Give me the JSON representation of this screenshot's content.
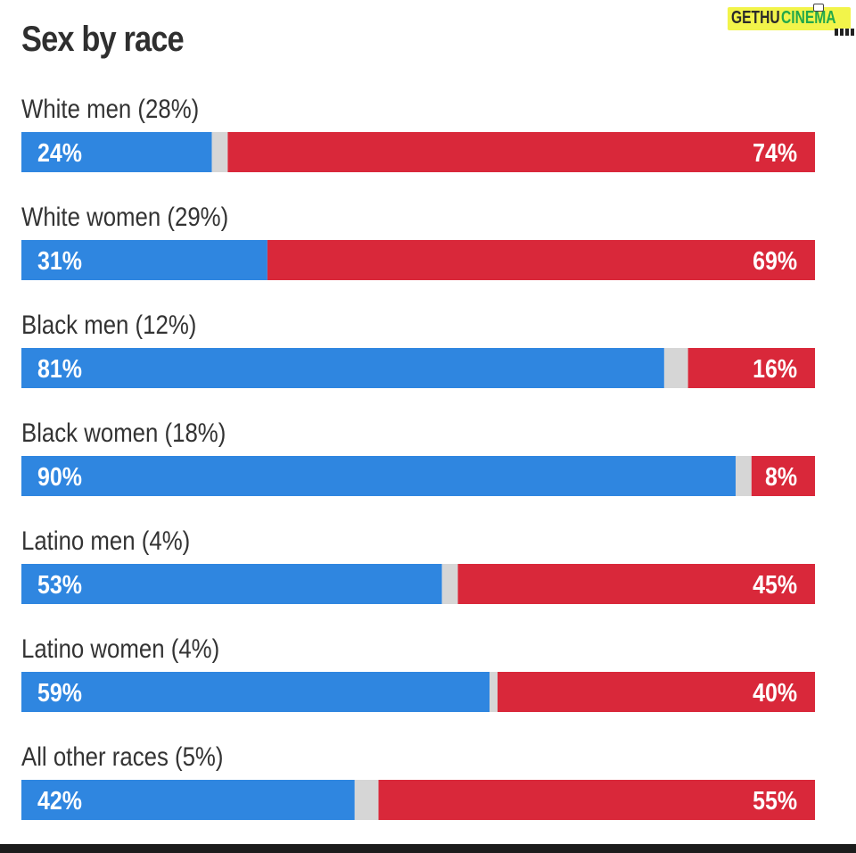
{
  "logo": {
    "part1": "GETHU",
    "part2": "CINEMA"
  },
  "chart_data": {
    "type": "bar",
    "orientation": "horizontal-stacked-100",
    "title": "Sex by race",
    "colors": {
      "left": "#2f86e0",
      "middle": "#d6d6d6",
      "right": "#d9283a"
    },
    "categories": [
      "White men (28%)",
      "White women (29%)",
      "Black men (12%)",
      "Black women (18%)",
      "Latino men (4%)",
      "Latino women (4%)",
      "All other races (5%)"
    ],
    "series": [
      {
        "values": [
          24,
          31,
          81,
          90,
          53,
          59,
          42
        ],
        "labels": [
          "24%",
          "31%",
          "81%",
          "90%",
          "53%",
          "59%",
          "42%"
        ]
      },
      {
        "values": [
          74,
          69,
          16,
          8,
          45,
          40,
          55
        ],
        "labels": [
          "74%",
          "69%",
          "16%",
          "8%",
          "45%",
          "40%",
          "55%"
        ]
      }
    ]
  }
}
